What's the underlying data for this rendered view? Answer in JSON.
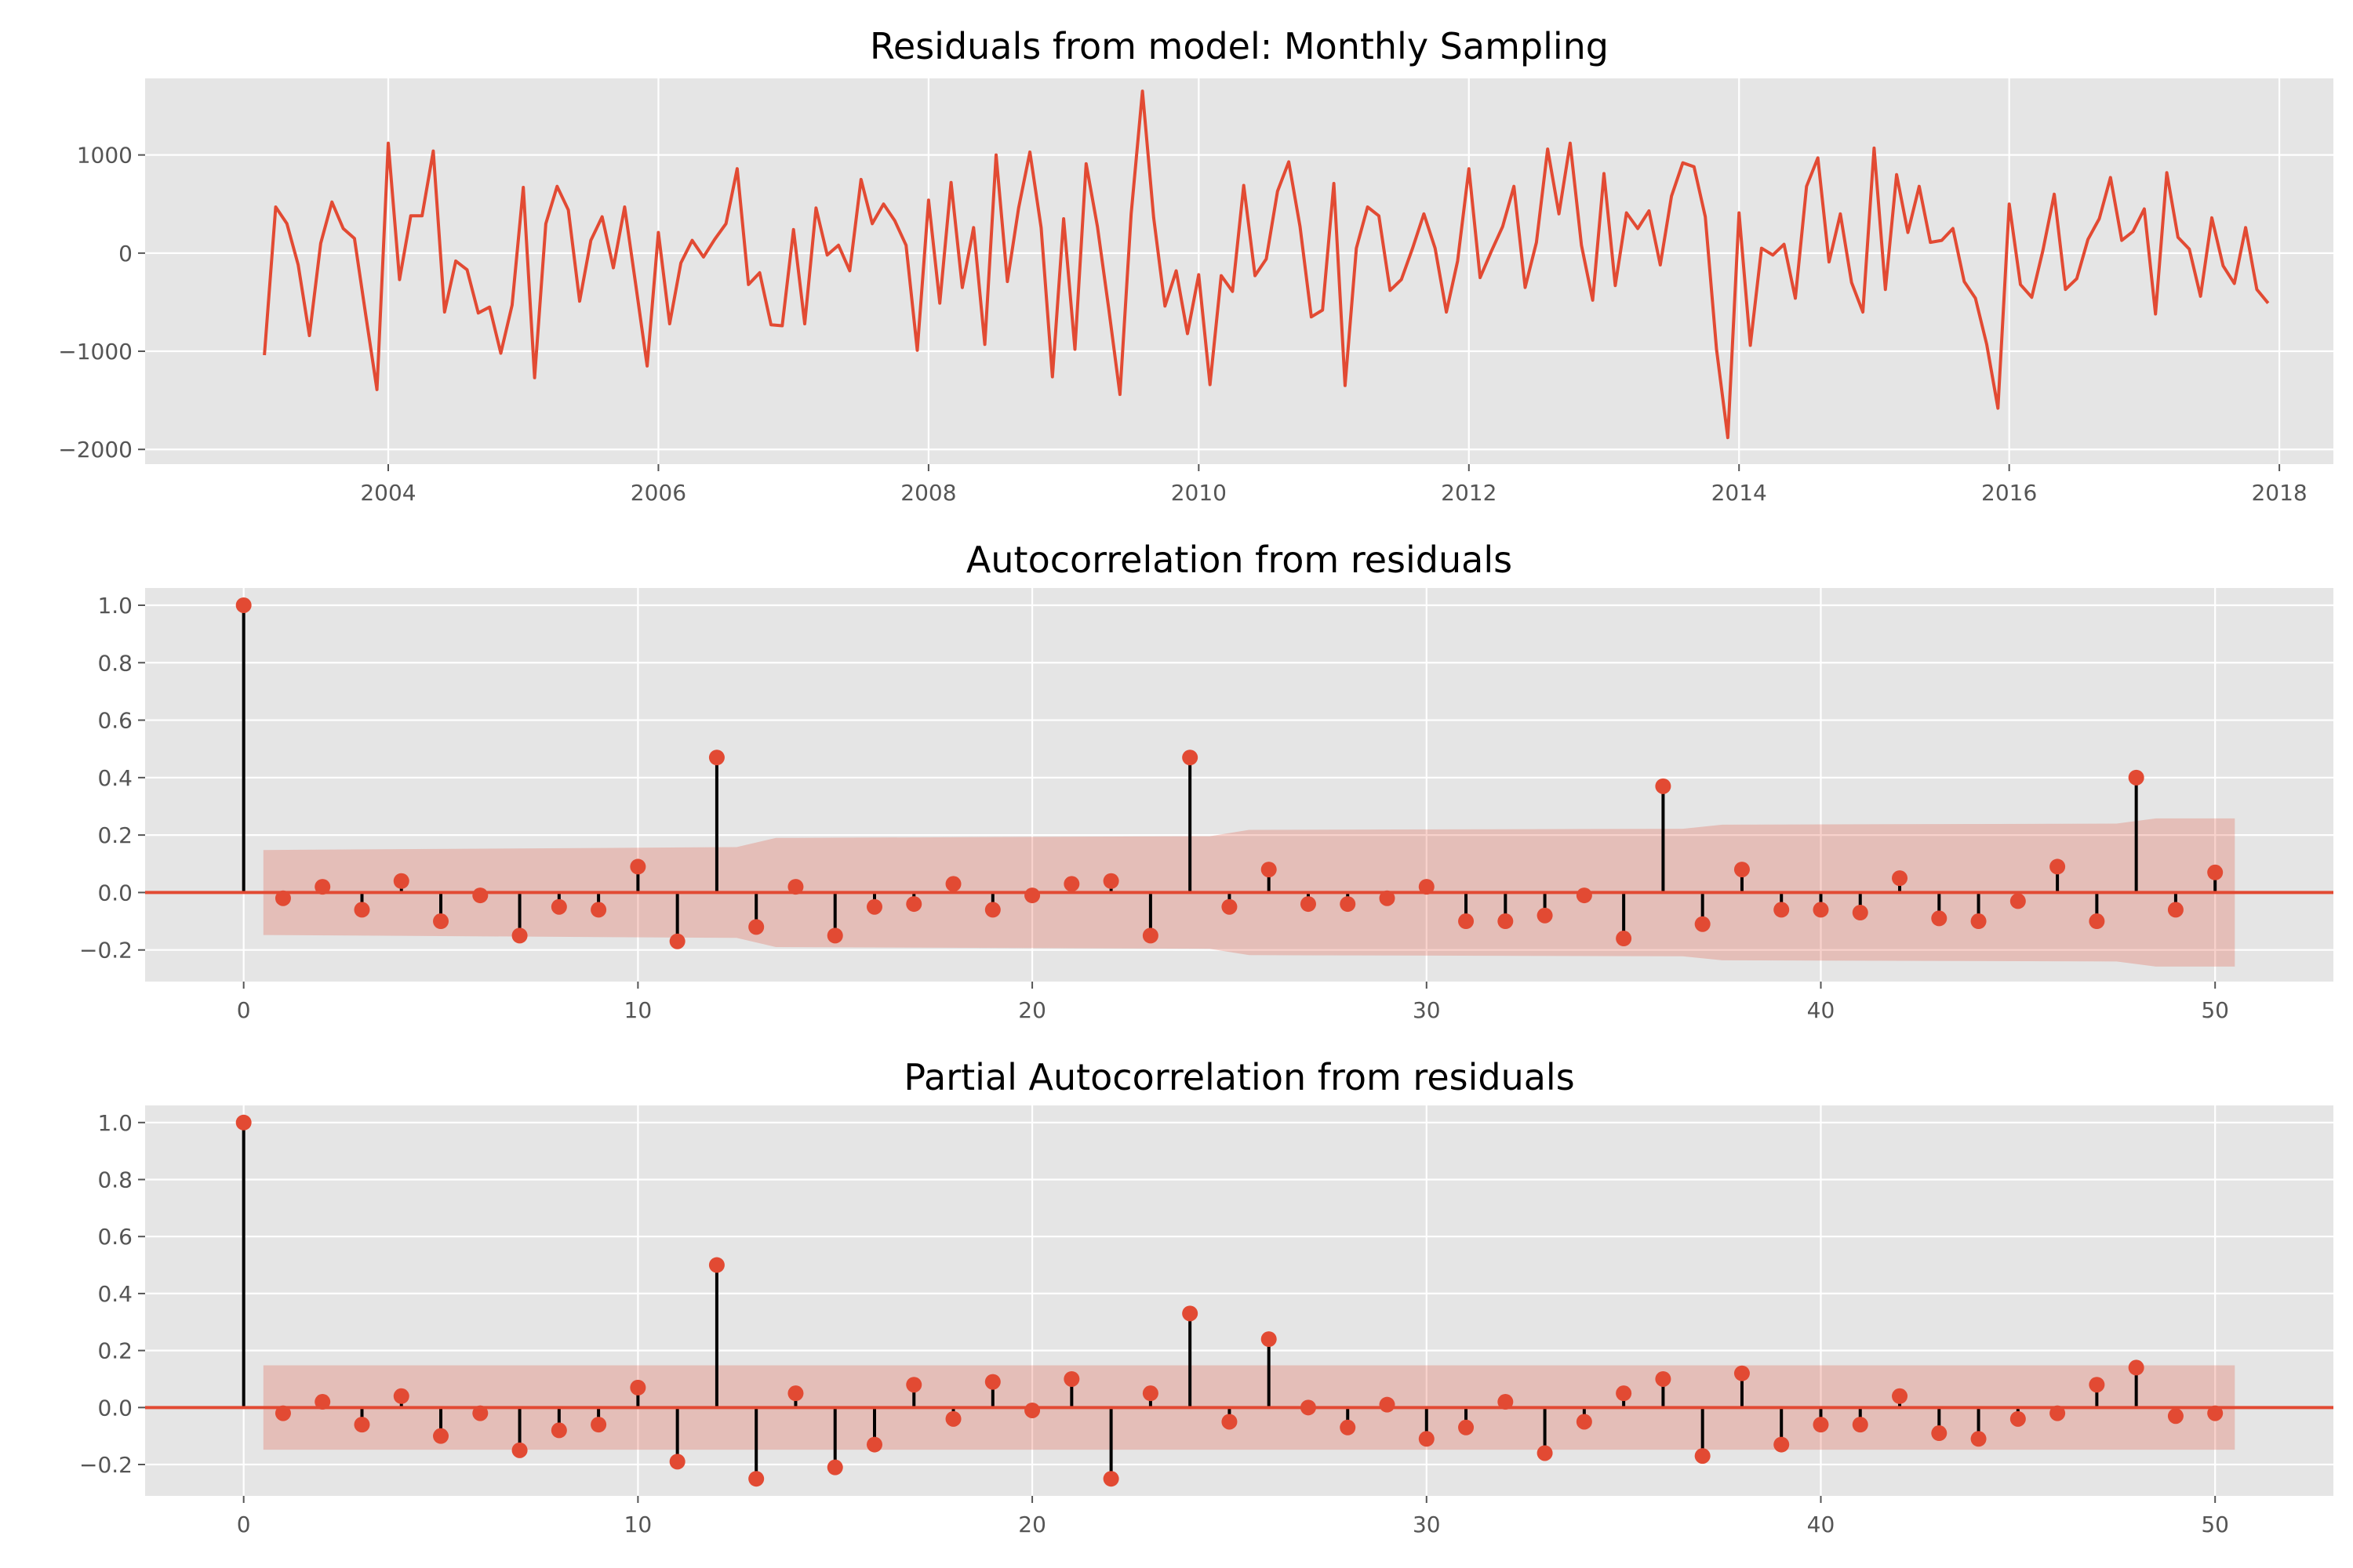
{
  "colors": {
    "line": "#e24a33",
    "stem": "#000000",
    "band": "#e24a33",
    "panel": "#e5e5e5",
    "grid": "#ffffff"
  },
  "chart_data": [
    {
      "type": "line",
      "title": "Residuals from model: Monthly Sampling",
      "x_start": "2003-02",
      "x_step": "1 month",
      "xlim": [
        2002.2,
        2018.4
      ],
      "ylim": [
        -2150,
        1780
      ],
      "xticks": [
        2004,
        2006,
        2008,
        2010,
        2012,
        2014,
        2016,
        2018
      ],
      "xtick_labels": [
        "2004",
        "2006",
        "2008",
        "2010",
        "2012",
        "2014",
        "2016",
        "2018"
      ],
      "yticks": [
        -2000,
        -1000,
        0,
        1000
      ],
      "ytick_labels": [
        "−2000",
        "−1000",
        "0",
        "1000"
      ],
      "grid": true,
      "values": [
        -1040,
        470,
        300,
        -120,
        -840,
        100,
        520,
        250,
        150,
        -630,
        -1390,
        1120,
        -270,
        380,
        380,
        1040,
        -600,
        -80,
        -170,
        -610,
        -550,
        -1020,
        -530,
        670,
        -1270,
        300,
        680,
        440,
        -490,
        130,
        370,
        -150,
        470,
        -330,
        -1150,
        210,
        -720,
        -100,
        130,
        -40,
        140,
        300,
        860,
        -320,
        -200,
        -730,
        -740,
        240,
        -720,
        460,
        -20,
        80,
        -180,
        750,
        300,
        500,
        330,
        80,
        -990,
        540,
        -510,
        720,
        -350,
        260,
        -930,
        1000,
        -290,
        460,
        1030,
        260,
        -1260,
        350,
        -980,
        910,
        270,
        -560,
        -1440,
        400,
        1650,
        360,
        -540,
        -180,
        -820,
        -220,
        -1340,
        -230,
        -390,
        690,
        -230,
        -60,
        630,
        930,
        270,
        -650,
        -580,
        710,
        -1350,
        50,
        470,
        380,
        -380,
        -270,
        50,
        400,
        50,
        -600,
        -80,
        860,
        -250,
        20,
        270,
        680,
        -350,
        110,
        1060,
        400,
        1120,
        80,
        -480,
        810,
        -330,
        410,
        250,
        430,
        -120,
        580,
        920,
        880,
        370,
        -980,
        -1880,
        410,
        -940,
        50,
        -20,
        90,
        -460,
        680,
        970,
        -90,
        400,
        -300,
        -600,
        1070,
        -370,
        800,
        210,
        680,
        110,
        130,
        250,
        -290,
        -460,
        -930,
        -1580,
        500,
        -320,
        -450,
        30,
        600,
        -370,
        -260,
        140,
        350,
        770,
        130,
        220,
        450,
        -620,
        820,
        160,
        40,
        -440,
        360,
        -130,
        -310,
        260,
        -370,
        -510
      ]
    },
    {
      "type": "stem",
      "title": "Autocorrelation from residuals",
      "lags_start": 0,
      "xlim": [
        -2.5,
        53
      ],
      "ylim": [
        -0.31,
        1.06
      ],
      "xticks": [
        0,
        10,
        20,
        30,
        40,
        50
      ],
      "xtick_labels": [
        "0",
        "10",
        "20",
        "30",
        "40",
        "50"
      ],
      "yticks": [
        -0.2,
        0.0,
        0.2,
        0.4,
        0.6,
        0.8,
        1.0
      ],
      "ytick_labels": [
        "−0.2",
        "0.0",
        "0.2",
        "0.4",
        "0.6",
        "0.8",
        "1.0"
      ],
      "grid": true,
      "values": [
        1.0,
        -0.02,
        0.02,
        -0.06,
        0.04,
        -0.1,
        -0.01,
        -0.15,
        -0.05,
        -0.06,
        0.09,
        -0.17,
        0.47,
        -0.12,
        0.02,
        -0.15,
        -0.05,
        -0.04,
        0.03,
        -0.06,
        -0.01,
        0.03,
        0.04,
        -0.15,
        0.47,
        -0.05,
        0.08,
        -0.04,
        -0.04,
        -0.02,
        0.02,
        -0.1,
        -0.1,
        -0.08,
        -0.01,
        -0.16,
        0.37,
        -0.11,
        0.08,
        -0.06,
        -0.06,
        -0.07,
        0.05,
        -0.09,
        -0.1,
        -0.03,
        0.09,
        -0.1,
        0.4,
        -0.06,
        0.07
      ],
      "conf_band": {
        "lags": [
          0.5,
          12.5,
          13.5,
          24.5,
          25.5,
          36.5,
          37.5,
          47.5,
          48.5,
          50.5
        ],
        "upper": [
          0.148,
          0.158,
          0.19,
          0.196,
          0.218,
          0.222,
          0.236,
          0.24,
          0.258,
          0.258
        ]
      }
    },
    {
      "type": "stem",
      "title": "Partial Autocorrelation from residuals",
      "lags_start": 0,
      "xlim": [
        -2.5,
        53
      ],
      "ylim": [
        -0.31,
        1.06
      ],
      "xticks": [
        0,
        10,
        20,
        30,
        40,
        50
      ],
      "xtick_labels": [
        "0",
        "10",
        "20",
        "30",
        "40",
        "50"
      ],
      "yticks": [
        -0.2,
        0.0,
        0.2,
        0.4,
        0.6,
        0.8,
        1.0
      ],
      "ytick_labels": [
        "−0.2",
        "0.0",
        "0.2",
        "0.4",
        "0.6",
        "0.8",
        "1.0"
      ],
      "grid": true,
      "values": [
        1.0,
        -0.02,
        0.02,
        -0.06,
        0.04,
        -0.1,
        -0.02,
        -0.15,
        -0.08,
        -0.06,
        0.07,
        -0.19,
        0.5,
        -0.25,
        0.05,
        -0.21,
        -0.13,
        0.08,
        -0.04,
        0.09,
        -0.01,
        0.1,
        -0.25,
        0.05,
        0.33,
        -0.05,
        0.24,
        0.0,
        -0.07,
        0.01,
        -0.11,
        -0.07,
        0.02,
        -0.16,
        -0.05,
        0.05,
        0.1,
        -0.17,
        0.12,
        -0.13,
        -0.06,
        -0.06,
        0.04,
        -0.09,
        -0.11,
        -0.04,
        -0.02,
        0.08,
        0.14,
        -0.03,
        -0.02
      ],
      "conf_band": {
        "lags": [
          0.5,
          50.5
        ],
        "upper": [
          0.148,
          0.148
        ]
      }
    }
  ]
}
